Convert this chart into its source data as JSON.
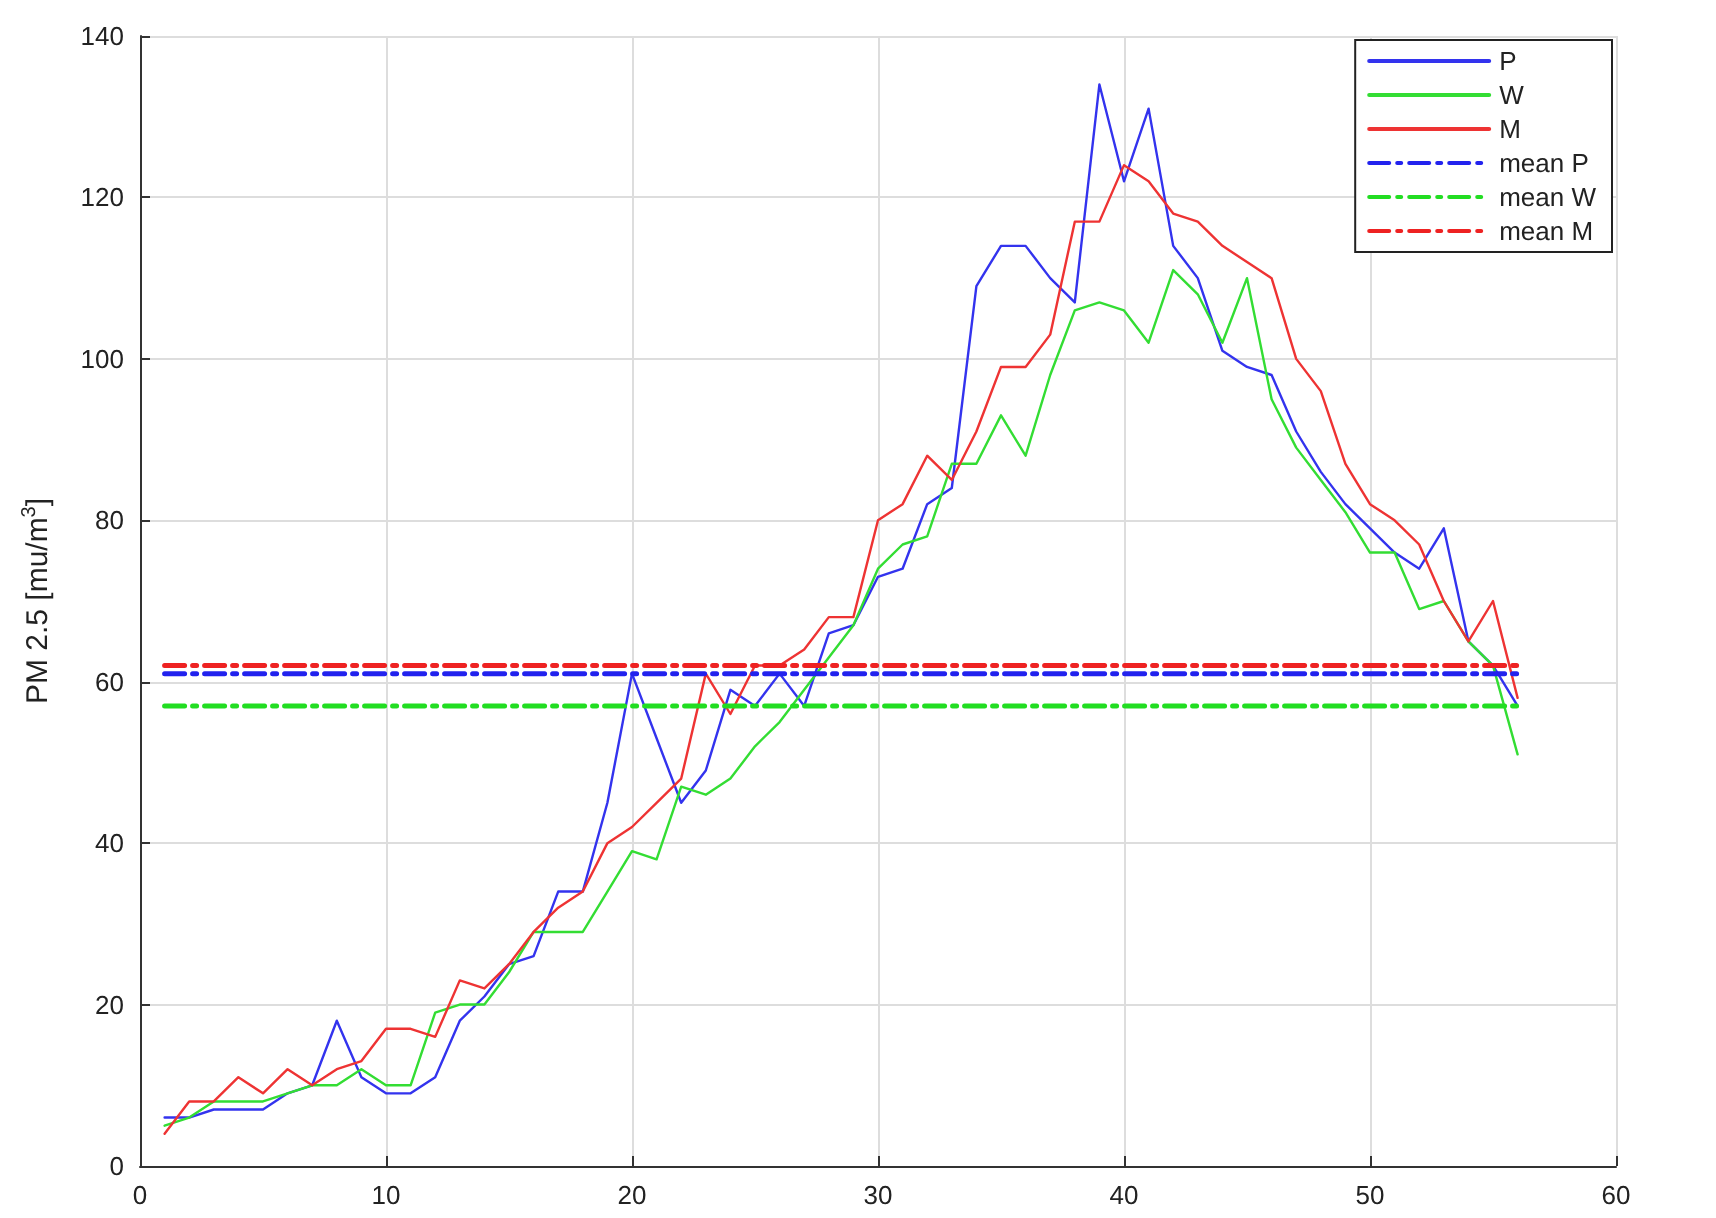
{
  "chart_data": {
    "type": "line",
    "ylabel": "PM 2.5 [mu/m$^{3}$]",
    "x": [
      1,
      2,
      3,
      4,
      5,
      6,
      7,
      8,
      9,
      10,
      11,
      12,
      13,
      14,
      15,
      16,
      17,
      18,
      19,
      20,
      21,
      22,
      23,
      24,
      25,
      26,
      27,
      28,
      29,
      30,
      31,
      32,
      33,
      34,
      35,
      36,
      37,
      38,
      39,
      40,
      41,
      42,
      43,
      44,
      45,
      46,
      47,
      48,
      49,
      50,
      51,
      52,
      53,
      54,
      55,
      56
    ],
    "series": [
      {
        "name": "P",
        "color": "#3333ee",
        "values": [
          6,
          6,
          7,
          7,
          7,
          9,
          10,
          18,
          11,
          9,
          9,
          11,
          18,
          21,
          25,
          26,
          34,
          34,
          45,
          61,
          53,
          45,
          49,
          59,
          57,
          61,
          57,
          66,
          67,
          73,
          74,
          82,
          84,
          109,
          114,
          114,
          110,
          107,
          134,
          122,
          131,
          114,
          110,
          101,
          99,
          98,
          91,
          86,
          82,
          79,
          76,
          74,
          79,
          65,
          62,
          57
        ]
      },
      {
        "name": "W",
        "color": "#33dd33",
        "values": [
          5,
          6,
          8,
          8,
          8,
          9,
          10,
          10,
          12,
          10,
          10,
          19,
          20,
          20,
          24,
          29,
          29,
          29,
          34,
          39,
          38,
          47,
          46,
          48,
          52,
          55,
          59,
          63,
          67,
          74,
          77,
          78,
          87,
          87,
          93,
          88,
          98,
          106,
          107,
          106,
          102,
          111,
          108,
          102,
          110,
          95,
          89,
          85,
          81,
          76,
          76,
          69,
          70,
          65,
          62,
          51
        ]
      },
      {
        "name": "M",
        "color": "#ee3333",
        "values": [
          4,
          8,
          8,
          11,
          9,
          12,
          10,
          12,
          13,
          17,
          17,
          16,
          23,
          22,
          25,
          29,
          32,
          34,
          40,
          42,
          45,
          48,
          61,
          56,
          62,
          62,
          64,
          68,
          68,
          80,
          82,
          88,
          85,
          91,
          99,
          99,
          103,
          117,
          117,
          124,
          122,
          118,
          117,
          114,
          112,
          110,
          100,
          96,
          87,
          82,
          80,
          77,
          70,
          65,
          70,
          58
        ]
      },
      {
        "name": "mean P",
        "color": "#2222ee",
        "values": [
          61,
          61,
          61,
          61,
          61,
          61,
          61,
          61,
          61,
          61,
          61,
          61,
          61,
          61,
          61,
          61,
          61,
          61,
          61,
          61,
          61,
          61,
          61,
          61,
          61,
          61,
          61,
          61,
          61,
          61,
          61,
          61,
          61,
          61,
          61,
          61,
          61,
          61,
          61,
          61,
          61,
          61,
          61,
          61,
          61,
          61,
          61,
          61,
          61,
          61,
          61,
          61,
          61,
          61,
          61,
          61
        ],
        "line_style": "dashed"
      },
      {
        "name": "mean W",
        "color": "#22dd22",
        "values": [
          57,
          57,
          57,
          57,
          57,
          57,
          57,
          57,
          57,
          57,
          57,
          57,
          57,
          57,
          57,
          57,
          57,
          57,
          57,
          57,
          57,
          57,
          57,
          57,
          57,
          57,
          57,
          57,
          57,
          57,
          57,
          57,
          57,
          57,
          57,
          57,
          57,
          57,
          57,
          57,
          57,
          57,
          57,
          57,
          57,
          57,
          57,
          57,
          57,
          57,
          57,
          57,
          57,
          57,
          57,
          57
        ],
        "line_style": "dashed"
      },
      {
        "name": "mean M",
        "color": "#ee2222",
        "values": [
          62,
          62,
          62,
          62,
          62,
          62,
          62,
          62,
          62,
          62,
          62,
          62,
          62,
          62,
          62,
          62,
          62,
          62,
          62,
          62,
          62,
          62,
          62,
          62,
          62,
          62,
          62,
          62,
          62,
          62,
          62,
          62,
          62,
          62,
          62,
          62,
          62,
          62,
          62,
          62,
          62,
          62,
          62,
          62,
          62,
          62,
          62,
          62,
          62,
          62,
          62,
          62,
          62,
          62,
          62,
          62
        ],
        "line_style": "dashed"
      }
    ],
    "xlim": [
      0,
      60
    ],
    "xticks": [
      0,
      10,
      20,
      30,
      40,
      50,
      60
    ],
    "ylim": [
      0,
      140
    ],
    "yticks": [
      0,
      20,
      40,
      60,
      80,
      100,
      120,
      140
    ],
    "grid": true,
    "legend": "top right",
    "marker": "none"
  }
}
